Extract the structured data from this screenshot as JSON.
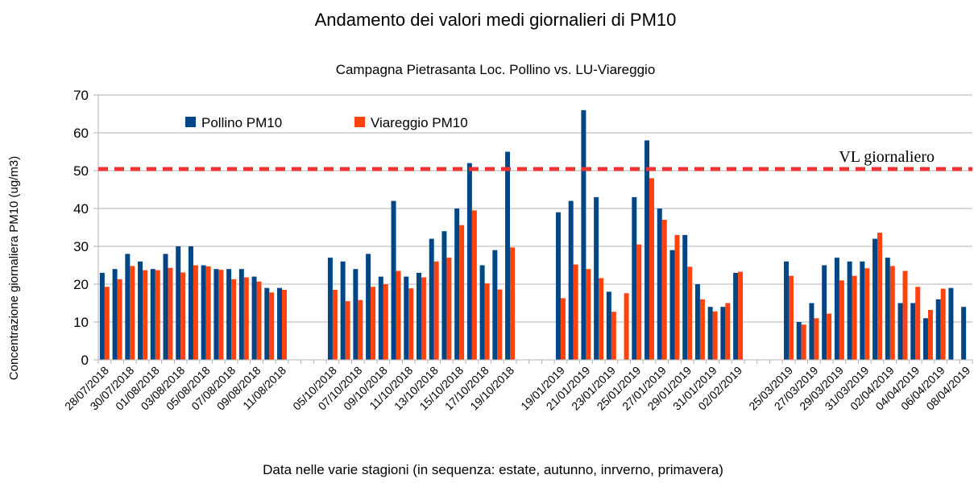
{
  "chart_data": {
    "type": "bar",
    "title": "Andamento dei valori medi giornalieri di PM10",
    "subtitle": "Campagna Pietrasanta Loc. Pollino vs. LU-Viareggio",
    "ylabel": "Concentrazione giornaliera PM10 (ug/m3)",
    "xlabel": "Data nelle varie stagioni (in sequenza: estate, autunno, inrverno, primavera)",
    "categories": [
      "28/07/2018",
      null,
      "30/07/2018",
      null,
      "01/08/2018",
      null,
      "03/08/2018",
      null,
      "05/08/2018",
      null,
      "07/08/2018",
      null,
      "09/08/2018",
      null,
      "11/08/2018",
      null,
      null,
      null,
      "05/10/2018",
      null,
      "07/10/2018",
      null,
      "09/10/2018",
      null,
      "11/10/2018",
      null,
      "13/10/2018",
      null,
      "15/10/2018",
      null,
      "17/10/2018",
      null,
      "19/10/2018",
      null,
      null,
      null,
      "19/01/2019",
      null,
      "21/01/2019",
      null,
      "23/01/2019",
      null,
      "25/01/2019",
      null,
      "27/01/2019",
      null,
      "29/01/2019",
      null,
      "31/01/2019",
      null,
      "02/02/2019",
      null,
      null,
      null,
      "25/03/2019",
      null,
      "27/03/2019",
      null,
      "29/03/2019",
      null,
      "31/03/2019",
      null,
      "02/04/2019",
      null,
      "04/04/2019",
      null,
      "06/04/2019",
      null,
      "08/04/2019"
    ],
    "series": [
      {
        "name": "Pollino PM10",
        "color": "#004586",
        "values": [
          23,
          24,
          28,
          26,
          24,
          28,
          30,
          30,
          25,
          24,
          24,
          24,
          22,
          19,
          19,
          null,
          null,
          null,
          27,
          26,
          24,
          28,
          22,
          42,
          22,
          23,
          32,
          34,
          40,
          52,
          25,
          29,
          55,
          null,
          null,
          null,
          39,
          42,
          66,
          43,
          18,
          null,
          43,
          58,
          40,
          29,
          33,
          20,
          14,
          14,
          23,
          null,
          null,
          null,
          26,
          10,
          15,
          25,
          27,
          26,
          26,
          32,
          27,
          15,
          15,
          11,
          16,
          19,
          14
        ]
      },
      {
        "name": "Viareggio PM10",
        "color": "#ff420e",
        "values": [
          19.3,
          21.3,
          24.8,
          23.7,
          23.7,
          24.3,
          23.1,
          25,
          24.7,
          23.8,
          21.3,
          21.8,
          20.7,
          17.8,
          18.5,
          null,
          null,
          null,
          18.5,
          15.5,
          15.8,
          19.3,
          20,
          23.5,
          18.9,
          21.8,
          26,
          27,
          35.6,
          39.5,
          20.2,
          18.6,
          29.7,
          null,
          null,
          null,
          16.3,
          25.2,
          24,
          21.6,
          12.7,
          17.6,
          30.5,
          48,
          37,
          33,
          24.6,
          16,
          12.8,
          15,
          23.3,
          null,
          null,
          null,
          22.2,
          9.3,
          11,
          12.2,
          21,
          22.2,
          24.2,
          33.6,
          24.8,
          23.5,
          19.3,
          13.2,
          18.8,
          null,
          null
        ]
      }
    ],
    "reference_line": {
      "value": 50,
      "label": "VL giornaliero",
      "color": "#ee3333"
    },
    "ylim": [
      0,
      70
    ],
    "yticks": [
      0,
      10,
      20,
      30,
      40,
      50,
      60,
      70
    ],
    "grid": true,
    "legend": "top-left"
  }
}
